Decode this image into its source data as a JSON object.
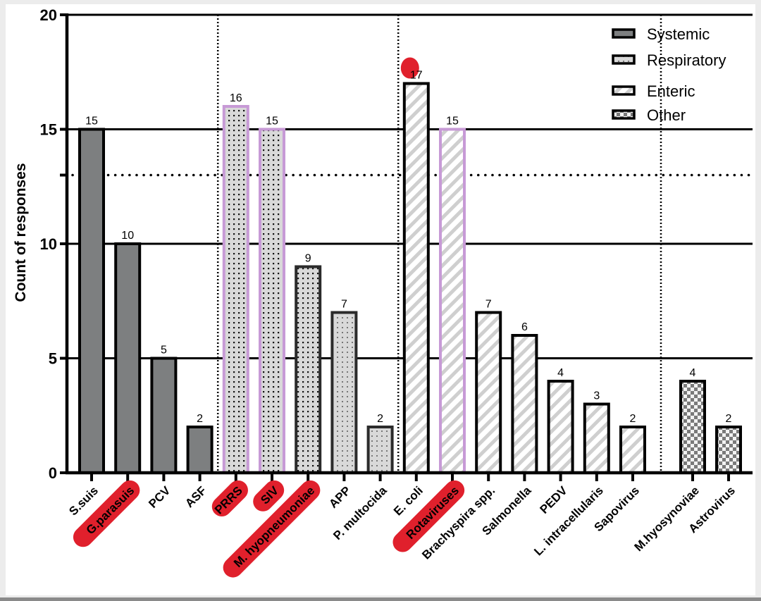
{
  "chart_data": {
    "type": "bar",
    "title": "",
    "xlabel": "",
    "ylabel": "Count of responses",
    "ylim": [
      0,
      20
    ],
    "yticks": [
      0,
      5,
      10,
      15,
      20
    ],
    "grid": "horizontal major gridlines",
    "reference_line": {
      "value": 13,
      "style": "dotted"
    },
    "group_separators": "dotted vertical lines between groups",
    "legend_position": "top-right",
    "legend": [
      {
        "name": "Systemic",
        "pattern": "solid-gray"
      },
      {
        "name": "Respiratory",
        "pattern": "dotted"
      },
      {
        "name": "Enteric",
        "pattern": "diagonal-stripes"
      },
      {
        "name": "Other",
        "pattern": "checkerboard"
      }
    ],
    "categories": [
      "S.suis",
      "G.parasuis",
      "PCV",
      "ASF",
      "PRRS",
      "SIV",
      "M. hyopneumoniae",
      "APP",
      "P. multocida",
      "E. coli",
      "Rotaviruses",
      "Brachyspira spp.",
      "Salmonella",
      "PEDV",
      "L. intracellularis",
      "Sapovirus",
      "M.hyosynoviae",
      "Astrovirus"
    ],
    "bars": [
      {
        "label": "S.suis",
        "value": 15,
        "group": "Systemic",
        "highlight_label": false,
        "highlight_bar": false
      },
      {
        "label": "G.parasuis",
        "value": 10,
        "group": "Systemic",
        "highlight_label": true,
        "highlight_bar": false
      },
      {
        "label": "PCV",
        "value": 5,
        "group": "Systemic",
        "highlight_label": false,
        "highlight_bar": false
      },
      {
        "label": "ASF",
        "value": 2,
        "group": "Systemic",
        "highlight_label": false,
        "highlight_bar": false
      },
      {
        "label": "PRRS",
        "value": 16,
        "group": "Respiratory",
        "highlight_label": true,
        "highlight_bar": true
      },
      {
        "label": "SIV",
        "value": 15,
        "group": "Respiratory",
        "highlight_label": true,
        "highlight_bar": true
      },
      {
        "label": "M. hyopneumoniae",
        "value": 9,
        "group": "Respiratory",
        "highlight_label": true,
        "highlight_bar": false
      },
      {
        "label": "APP",
        "value": 7,
        "group": "Respiratory",
        "highlight_label": false,
        "highlight_bar": false
      },
      {
        "label": "P. multocida",
        "value": 2,
        "group": "Respiratory",
        "highlight_label": false,
        "highlight_bar": false
      },
      {
        "label": "E. coli",
        "value": 17,
        "group": "Enteric",
        "highlight_label": false,
        "highlight_bar": false,
        "marker_dot": true
      },
      {
        "label": "Rotaviruses",
        "value": 15,
        "group": "Enteric",
        "highlight_label": true,
        "highlight_bar": true
      },
      {
        "label": "Brachyspira spp.",
        "value": 7,
        "group": "Enteric",
        "highlight_label": false,
        "highlight_bar": false
      },
      {
        "label": "Salmonella",
        "value": 6,
        "group": "Enteric",
        "highlight_label": false,
        "highlight_bar": false
      },
      {
        "label": "PEDV",
        "value": 4,
        "group": "Enteric",
        "highlight_label": false,
        "highlight_bar": false
      },
      {
        "label": "L. intracellularis",
        "value": 3,
        "group": "Enteric",
        "highlight_label": false,
        "highlight_bar": false
      },
      {
        "label": "Sapovirus",
        "value": 2,
        "group": "Enteric",
        "highlight_label": false,
        "highlight_bar": false
      },
      {
        "label": "M.hyosynoviae",
        "value": 4,
        "group": "Other",
        "highlight_label": false,
        "highlight_bar": false
      },
      {
        "label": "Astrovirus",
        "value": 2,
        "group": "Other",
        "highlight_label": false,
        "highlight_bar": false
      }
    ],
    "colors": {
      "systemic_fill": "#7d7f80",
      "pattern_bg": "#d9d9d9",
      "bar_border": "#000000",
      "highlight_border": "#c79ad6",
      "annotation_red": "#e0202c"
    }
  }
}
